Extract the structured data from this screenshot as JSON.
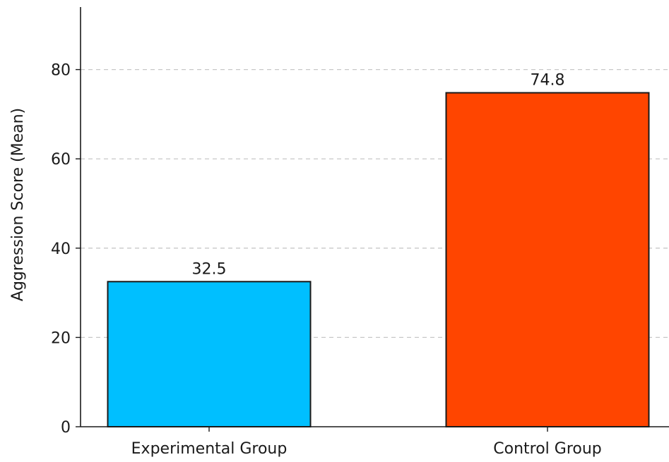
{
  "chart_data": {
    "type": "bar",
    "title": "",
    "xlabel": "",
    "ylabel": "Aggression Score (Mean)",
    "ylim": [
      0,
      94
    ],
    "yticks": [
      0,
      20,
      40,
      60,
      80
    ],
    "grid": true,
    "categories": [
      "Experimental Group",
      "Control Group"
    ],
    "values": [
      32.5,
      74.8
    ],
    "data_labels": [
      "32.5",
      "74.8"
    ],
    "colors": [
      "#00BFFF",
      "#FF4500"
    ],
    "edge_color": "#1a1a1a"
  }
}
